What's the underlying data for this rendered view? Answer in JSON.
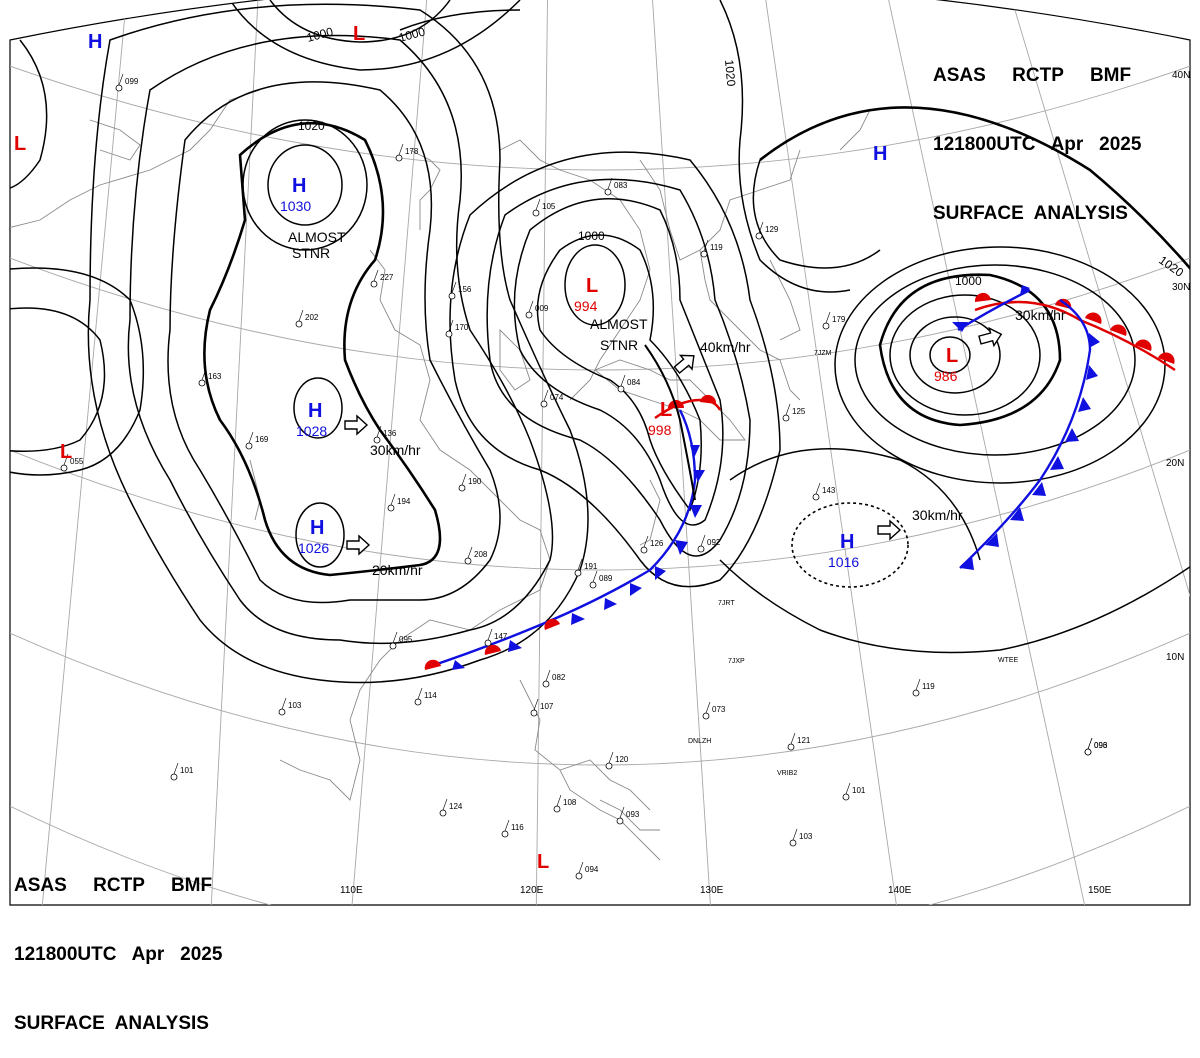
{
  "header": {
    "line1": "ASAS     RCTP     BMF",
    "line2": "121800UTC   Apr   2025",
    "line3": "SURFACE  ANALYSIS"
  },
  "colors": {
    "high_symbol": "#1010e0",
    "low_symbol": "#e00000",
    "warm_front": "#e00000",
    "cold_front": "#1010e0",
    "isobar": "#000000",
    "coast": "#808080",
    "grid": "#a0a0a0"
  },
  "grid_labels": {
    "lon": [
      "110E",
      "120E",
      "130E",
      "140E",
      "150E"
    ],
    "lat": [
      "40N",
      "30N",
      "20N",
      "10N"
    ]
  },
  "isobar_labels": [
    "1000",
    "1000",
    "1020",
    "1020",
    "1000",
    "1000",
    "1020"
  ],
  "systems": [
    {
      "type": "H",
      "pressure": ""
    },
    {
      "type": "L",
      "pressure": ""
    },
    {
      "type": "L",
      "pressure": ""
    },
    {
      "type": "H",
      "pressure": "1030"
    },
    {
      "type": "L",
      "pressure": "994"
    },
    {
      "type": "H",
      "pressure": ""
    },
    {
      "type": "L",
      "pressure": "986"
    },
    {
      "type": "H",
      "pressure": "1028"
    },
    {
      "type": "L",
      "pressure": ""
    },
    {
      "type": "L",
      "pressure": "998"
    },
    {
      "type": "H",
      "pressure": "1026"
    },
    {
      "type": "H",
      "pressure": "1016"
    },
    {
      "type": "L",
      "pressure": ""
    }
  ],
  "annotations": [
    "ALMOST",
    "STNR",
    "ALMOST",
    "STNR"
  ],
  "motions": [
    "30km/hr",
    "20km/hr",
    "40km/hr",
    "30km/hr",
    "30km/hr"
  ],
  "station_plots": [
    "099",
    "178",
    "156",
    "227",
    "202",
    "163",
    "169",
    "055",
    "170",
    "083",
    "105",
    "009",
    "119",
    "129",
    "179",
    "125",
    "136",
    "190",
    "194",
    "208",
    "191",
    "126",
    "092",
    "089",
    "095",
    "147",
    "114",
    "103",
    "082",
    "107",
    "073",
    "121",
    "120",
    "108",
    "124",
    "116",
    "101",
    "103",
    "096",
    "094",
    "093",
    "101",
    "119",
    "093",
    "074",
    "084",
    "143"
  ],
  "ship_callsigns": [
    "7JZM",
    "7JRT",
    "7JXP",
    "DNLZH",
    "VRIB2",
    "WTEE"
  ]
}
